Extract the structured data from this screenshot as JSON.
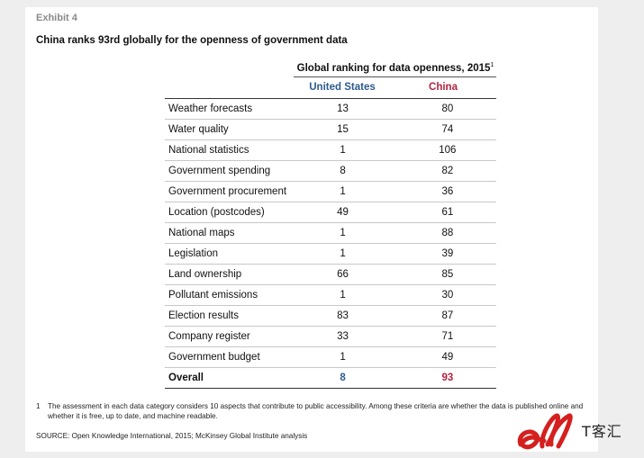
{
  "exhibit_label": "Exhibit 4",
  "chart_data": {
    "type": "table",
    "title": "China ranks 93rd globally for the openness of government data",
    "column_group": "Global ranking for data openness, 2015",
    "column_group_note_marker": "1",
    "columns": [
      "United States",
      "China"
    ],
    "rows": [
      {
        "category": "Weather forecasts",
        "united_states": "13",
        "china": "80"
      },
      {
        "category": "Water quality",
        "united_states": "15",
        "china": "74"
      },
      {
        "category": "National statistics",
        "united_states": "1",
        "china": "106"
      },
      {
        "category": "Government spending",
        "united_states": "8",
        "china": "82"
      },
      {
        "category": "Government procurement",
        "united_states": "1",
        "china": "36"
      },
      {
        "category": "Location (postcodes)",
        "united_states": "49",
        "china": "61"
      },
      {
        "category": "National maps",
        "united_states": "1",
        "china": "88"
      },
      {
        "category": "Legislation",
        "united_states": "1",
        "china": "39"
      },
      {
        "category": "Land ownership",
        "united_states": "66",
        "china": "85"
      },
      {
        "category": "Pollutant emissions",
        "united_states": "1",
        "china": "30"
      },
      {
        "category": "Election results",
        "united_states": "83",
        "china": "87"
      },
      {
        "category": "Company register",
        "united_states": "33",
        "china": "71"
      },
      {
        "category": "Government budget",
        "united_states": "1",
        "china": "49"
      }
    ],
    "overall": {
      "category": "Overall",
      "united_states": "8",
      "china": "93"
    }
  },
  "footnote": {
    "number": "1",
    "text": "The assessment in each data category considers 10 aspects that contribute to public accessibility. Among these criteria are whether the data is published online and whether it is free, up to date, and machine readable."
  },
  "source": "SOURCE: Open Knowledge International, 2015; McKinsey Global Institute analysis",
  "watermark": {
    "text": "T客汇"
  },
  "colors": {
    "united_states": "#2d5b8e",
    "china": "#b0243f",
    "watermark_red": "#d4201f"
  }
}
